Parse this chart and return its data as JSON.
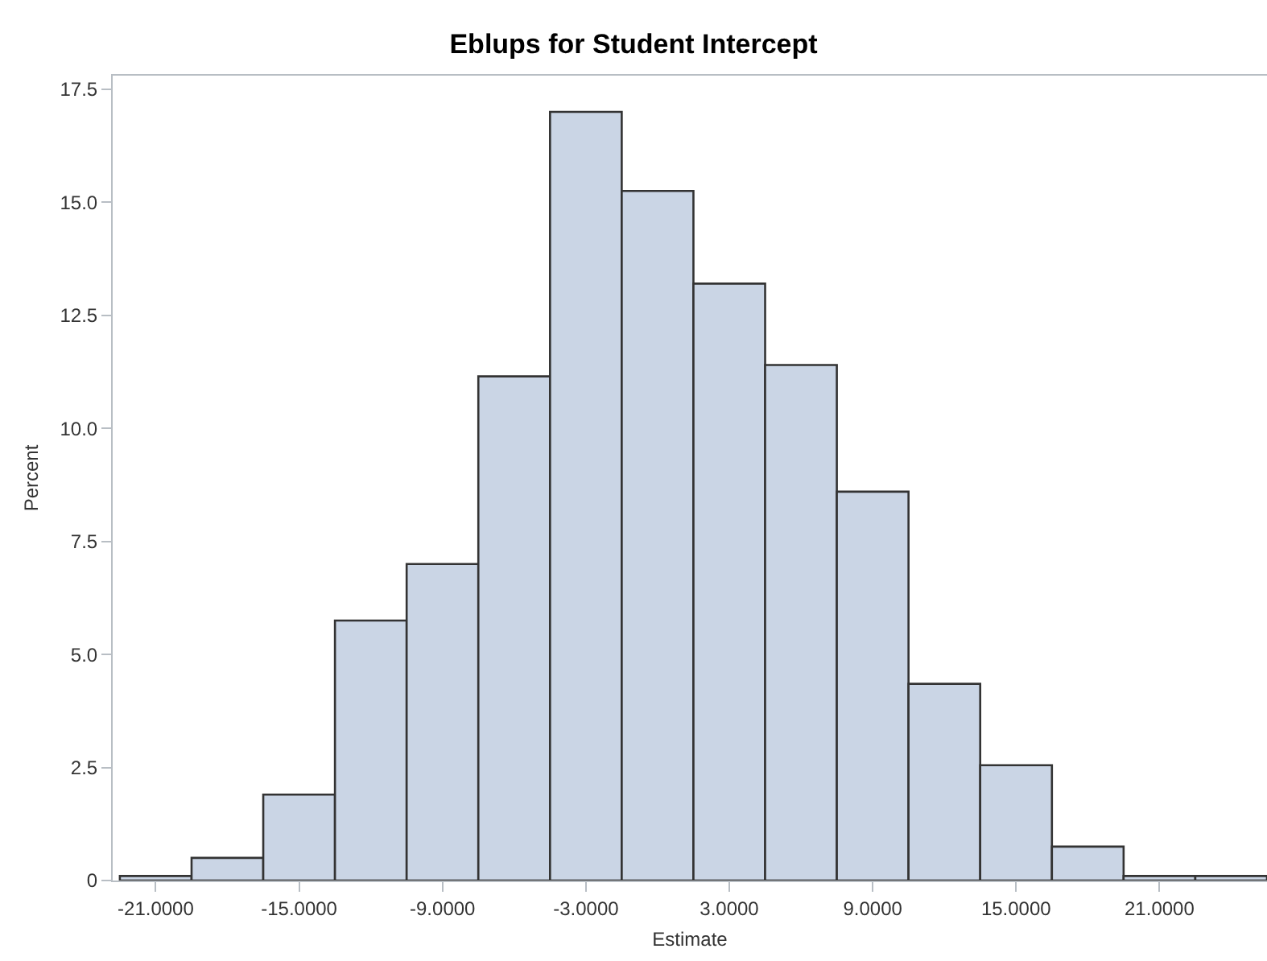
{
  "chart_data": {
    "type": "histogram",
    "title": "Eblups for Student Intercept",
    "xlabel": "Estimate",
    "ylabel": "Percent",
    "bins": [
      -22.5,
      -19.5,
      -16.5,
      -13.5,
      -10.5,
      -7.5,
      -4.5,
      -1.5,
      1.5,
      4.5,
      7.5,
      10.5,
      13.5,
      16.5,
      19.5,
      22.5,
      25.5
    ],
    "values": [
      0.1,
      0.5,
      1.9,
      5.75,
      7.0,
      11.15,
      17.0,
      15.25,
      13.2,
      11.4,
      8.6,
      4.35,
      2.55,
      0.75,
      0.1,
      0.1
    ],
    "color": "#cad5e5",
    "xlim": [
      -22.8,
      25.5
    ],
    "xticks": [
      {
        "value": -21,
        "label": "-21.0000"
      },
      {
        "value": -15,
        "label": "-15.0000"
      },
      {
        "value": -9,
        "label": "-9.0000"
      },
      {
        "value": -3,
        "label": "-3.0000"
      },
      {
        "value": 3,
        "label": "3.0000"
      },
      {
        "value": 9,
        "label": "9.0000"
      },
      {
        "value": 15,
        "label": "15.0000"
      },
      {
        "value": 21,
        "label": "21.0000"
      }
    ],
    "ylim": [
      0,
      17.8
    ],
    "yticks": [
      0,
      2.5,
      {
        "value": 5,
        "label": "5.0"
      },
      7.5,
      {
        "value": 10,
        "label": "10.0"
      },
      12.5,
      {
        "value": 15,
        "label": "15.0"
      },
      17.5
    ]
  }
}
